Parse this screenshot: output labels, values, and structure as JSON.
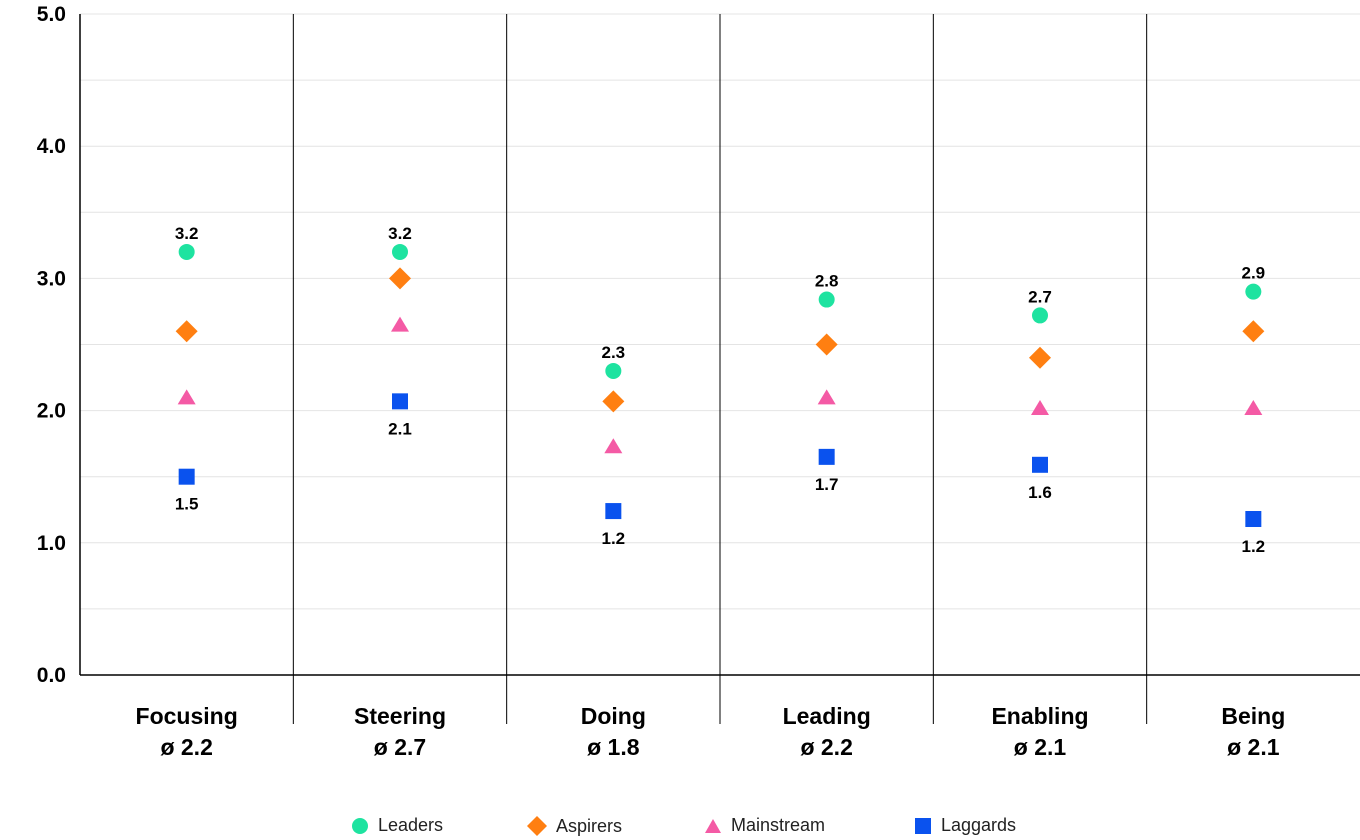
{
  "chart_data": {
    "type": "scatter",
    "categories": [
      {
        "name": "Focusing",
        "avg": "ø 2.2"
      },
      {
        "name": "Steering",
        "avg": "ø 2.7"
      },
      {
        "name": "Doing",
        "avg": "ø 1.8"
      },
      {
        "name": "Leading",
        "avg": "ø 2.2"
      },
      {
        "name": "Enabling",
        "avg": "ø 2.1"
      },
      {
        "name": "Being",
        "avg": "ø 2.1"
      }
    ],
    "ylim": [
      0,
      5
    ],
    "yticks": [
      "0.0",
      "1.0",
      "2.0",
      "3.0",
      "4.0",
      "5.0"
    ],
    "minor_gridlines": true,
    "series": [
      {
        "name": "Leaders",
        "marker": "circle",
        "color": "#1ee3a0",
        "values": [
          3.2,
          3.2,
          2.3,
          2.84,
          2.72,
          2.9
        ],
        "labels": [
          "3.2",
          "3.2",
          "2.3",
          "2.8",
          "2.7",
          "2.9"
        ],
        "label_position": "above"
      },
      {
        "name": "Aspirers",
        "marker": "diamond",
        "color": "#ff7f11",
        "values": [
          2.6,
          3.0,
          2.07,
          2.5,
          2.4,
          2.6
        ]
      },
      {
        "name": "Mainstream",
        "marker": "triangle",
        "color": "#f45aa5",
        "values": [
          2.1,
          2.65,
          1.73,
          2.1,
          2.02,
          2.02
        ]
      },
      {
        "name": "Laggards",
        "marker": "square",
        "color": "#0a52ee",
        "values": [
          1.5,
          2.07,
          1.24,
          1.65,
          1.59,
          1.18
        ],
        "labels": [
          "1.5",
          "2.1",
          "1.2",
          "1.7",
          "1.6",
          "1.2"
        ],
        "label_position": "below"
      }
    ],
    "legend_position": "bottom-center"
  },
  "legend": [
    {
      "label": "Leaders",
      "marker": "circle",
      "color": "#1ee3a0"
    },
    {
      "label": "Aspirers",
      "marker": "diamond",
      "color": "#ff7f11"
    },
    {
      "label": "Mainstream",
      "marker": "triangle",
      "color": "#f45aa5"
    },
    {
      "label": "Laggards",
      "marker": "square",
      "color": "#0a52ee"
    }
  ]
}
